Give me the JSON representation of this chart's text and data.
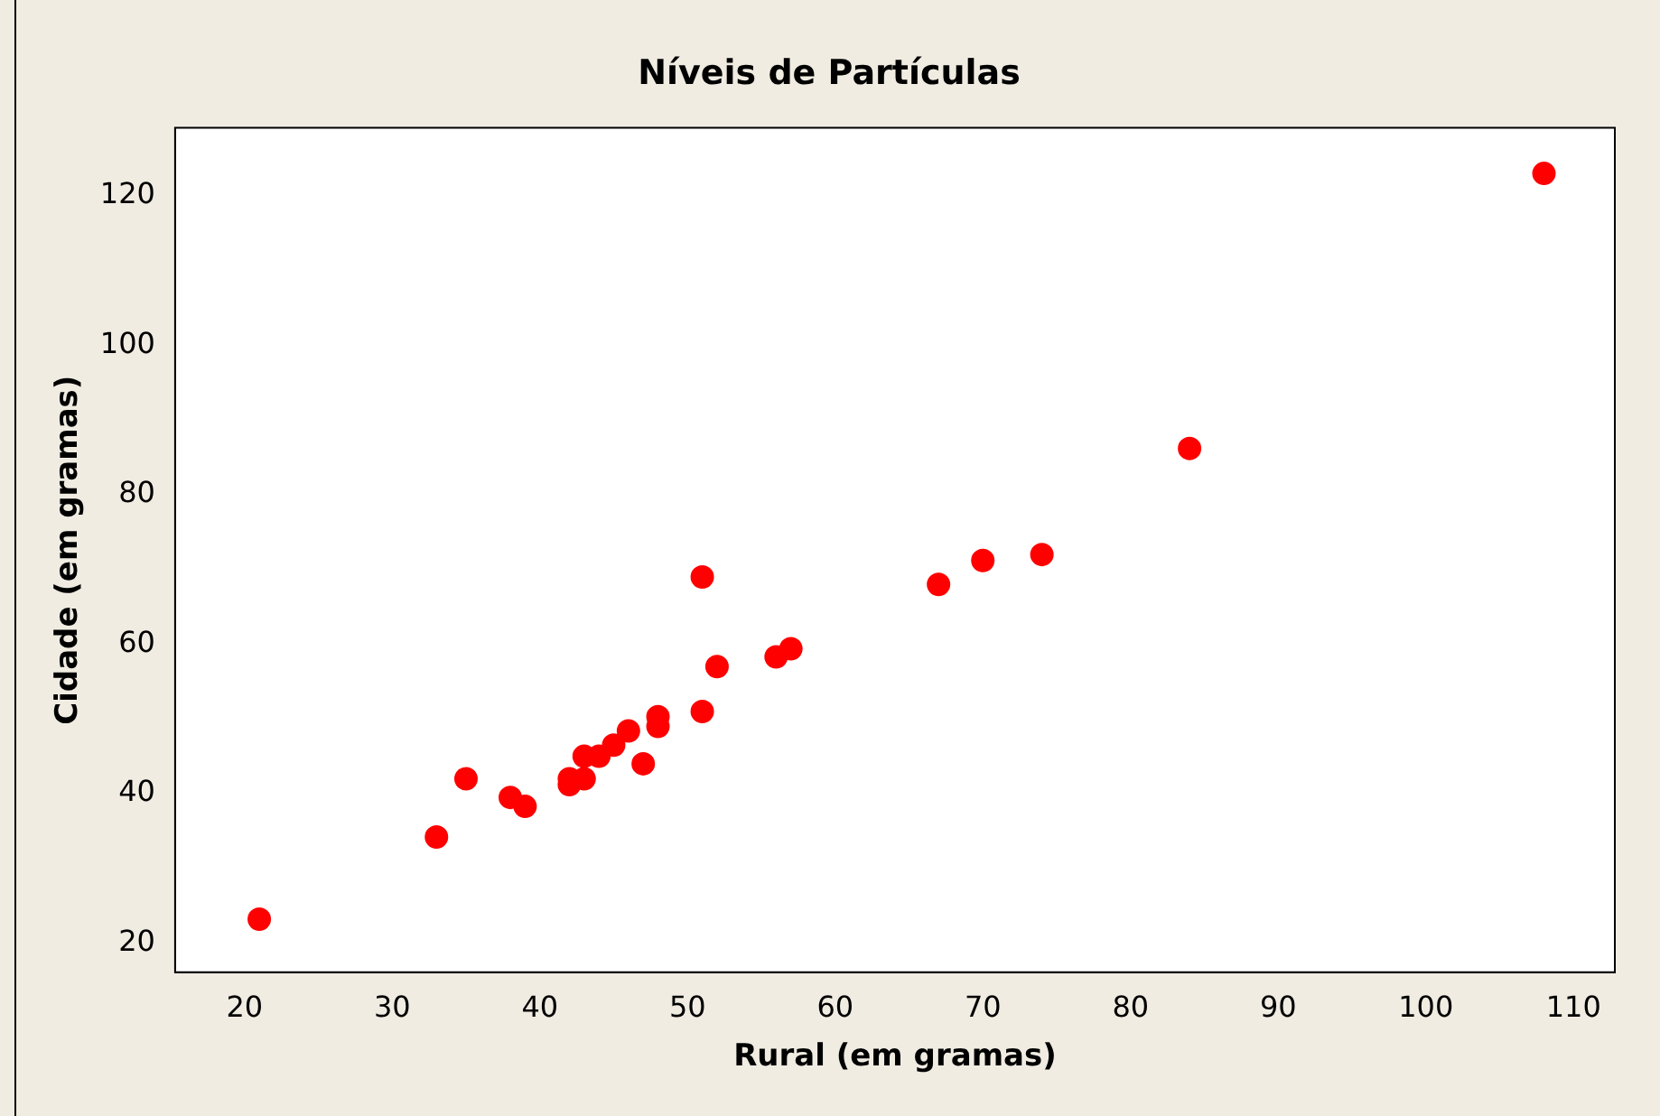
{
  "chart_data": {
    "type": "scatter",
    "title": "Níveis de Partículas",
    "xlabel": "Rural (em gramas)",
    "ylabel": "Cidade (em gramas)",
    "x": [
      21,
      33,
      35,
      38,
      39,
      42,
      42,
      43,
      43,
      44,
      45,
      46,
      47,
      48,
      48,
      51,
      51,
      52,
      56,
      57,
      67,
      70,
      74,
      84,
      108
    ],
    "series": [
      {
        "color": "#ff0000",
        "values": [
          23.2,
          34.2,
          42,
          39.5,
          38.3,
          41.2,
          42,
          42,
          45,
          45,
          46.5,
          48.4,
          44,
          49,
          50.3,
          51,
          69,
          57,
          58.3,
          59.4,
          68,
          71.2,
          72,
          86.2,
          123
        ]
      }
    ],
    "marker": "circle",
    "xlim": [
      15.3,
      112.8
    ],
    "ylim": [
      16.1,
      129.1
    ],
    "xticks": [
      20,
      30,
      40,
      50,
      60,
      70,
      80,
      90,
      100,
      110
    ],
    "yticks": [
      20,
      40,
      60,
      80,
      100,
      120
    ],
    "grid": false,
    "legend": false
  }
}
